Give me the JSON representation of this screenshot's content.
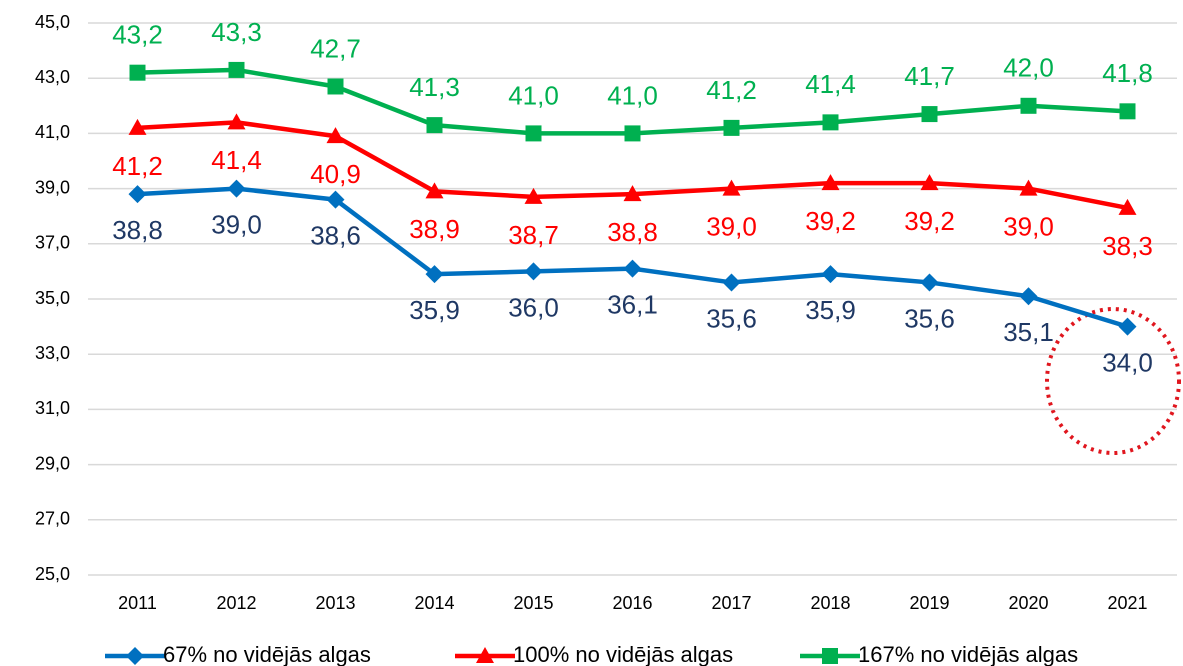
{
  "chart_data": {
    "type": "line",
    "categories": [
      "2011",
      "2012",
      "2013",
      "2014",
      "2015",
      "2016",
      "2017",
      "2018",
      "2019",
      "2020",
      "2021"
    ],
    "series": [
      {
        "name": "67% no vidējās algas",
        "color": "#0070c0",
        "label_color": "#1f3864",
        "marker": "diamond",
        "values": [
          38.8,
          39.0,
          38.6,
          35.9,
          36.0,
          36.1,
          35.6,
          35.9,
          35.6,
          35.1,
          34.0
        ],
        "value_labels": [
          "38,8",
          "39,0",
          "38,6",
          "35,9",
          "36,0",
          "36,1",
          "35,6",
          "35,9",
          "35,6",
          "35,1",
          "34,0"
        ]
      },
      {
        "name": "100% no vidējās algas",
        "color": "#ff0000",
        "label_color": "#ff0000",
        "marker": "triangle",
        "values": [
          41.2,
          41.4,
          40.9,
          38.9,
          38.7,
          38.8,
          39.0,
          39.2,
          39.2,
          39.0,
          38.3
        ],
        "value_labels": [
          "41,2",
          "41,4",
          "40,9",
          "38,9",
          "38,7",
          "38,8",
          "39,0",
          "39,2",
          "39,2",
          "39,0",
          "38,3"
        ]
      },
      {
        "name": "167% no vidējās algas",
        "color": "#00b050",
        "label_color": "#00b050",
        "marker": "square",
        "values": [
          43.2,
          43.3,
          42.7,
          41.3,
          41.0,
          41.0,
          41.2,
          41.4,
          41.7,
          42.0,
          41.8
        ],
        "value_labels": [
          "43,2",
          "43,3",
          "42,7",
          "41,3",
          "41,0",
          "41,0",
          "41,2",
          "41,4",
          "41,7",
          "42,0",
          "41,8"
        ]
      }
    ],
    "ylim": [
      25,
      45
    ],
    "yticks": [
      {
        "value": 25,
        "label": "25,0"
      },
      {
        "value": 27,
        "label": "27,0"
      },
      {
        "value": 29,
        "label": "29,0"
      },
      {
        "value": 31,
        "label": "31,0"
      },
      {
        "value": 33,
        "label": "33,0"
      },
      {
        "value": 35,
        "label": "35,0"
      },
      {
        "value": 37,
        "label": "37,0"
      },
      {
        "value": 39,
        "label": "39,0"
      },
      {
        "value": 41,
        "label": "41,0"
      },
      {
        "value": 43,
        "label": "43,0"
      },
      {
        "value": 45,
        "label": "45,0"
      }
    ],
    "grid": true,
    "legend": "bottom"
  }
}
